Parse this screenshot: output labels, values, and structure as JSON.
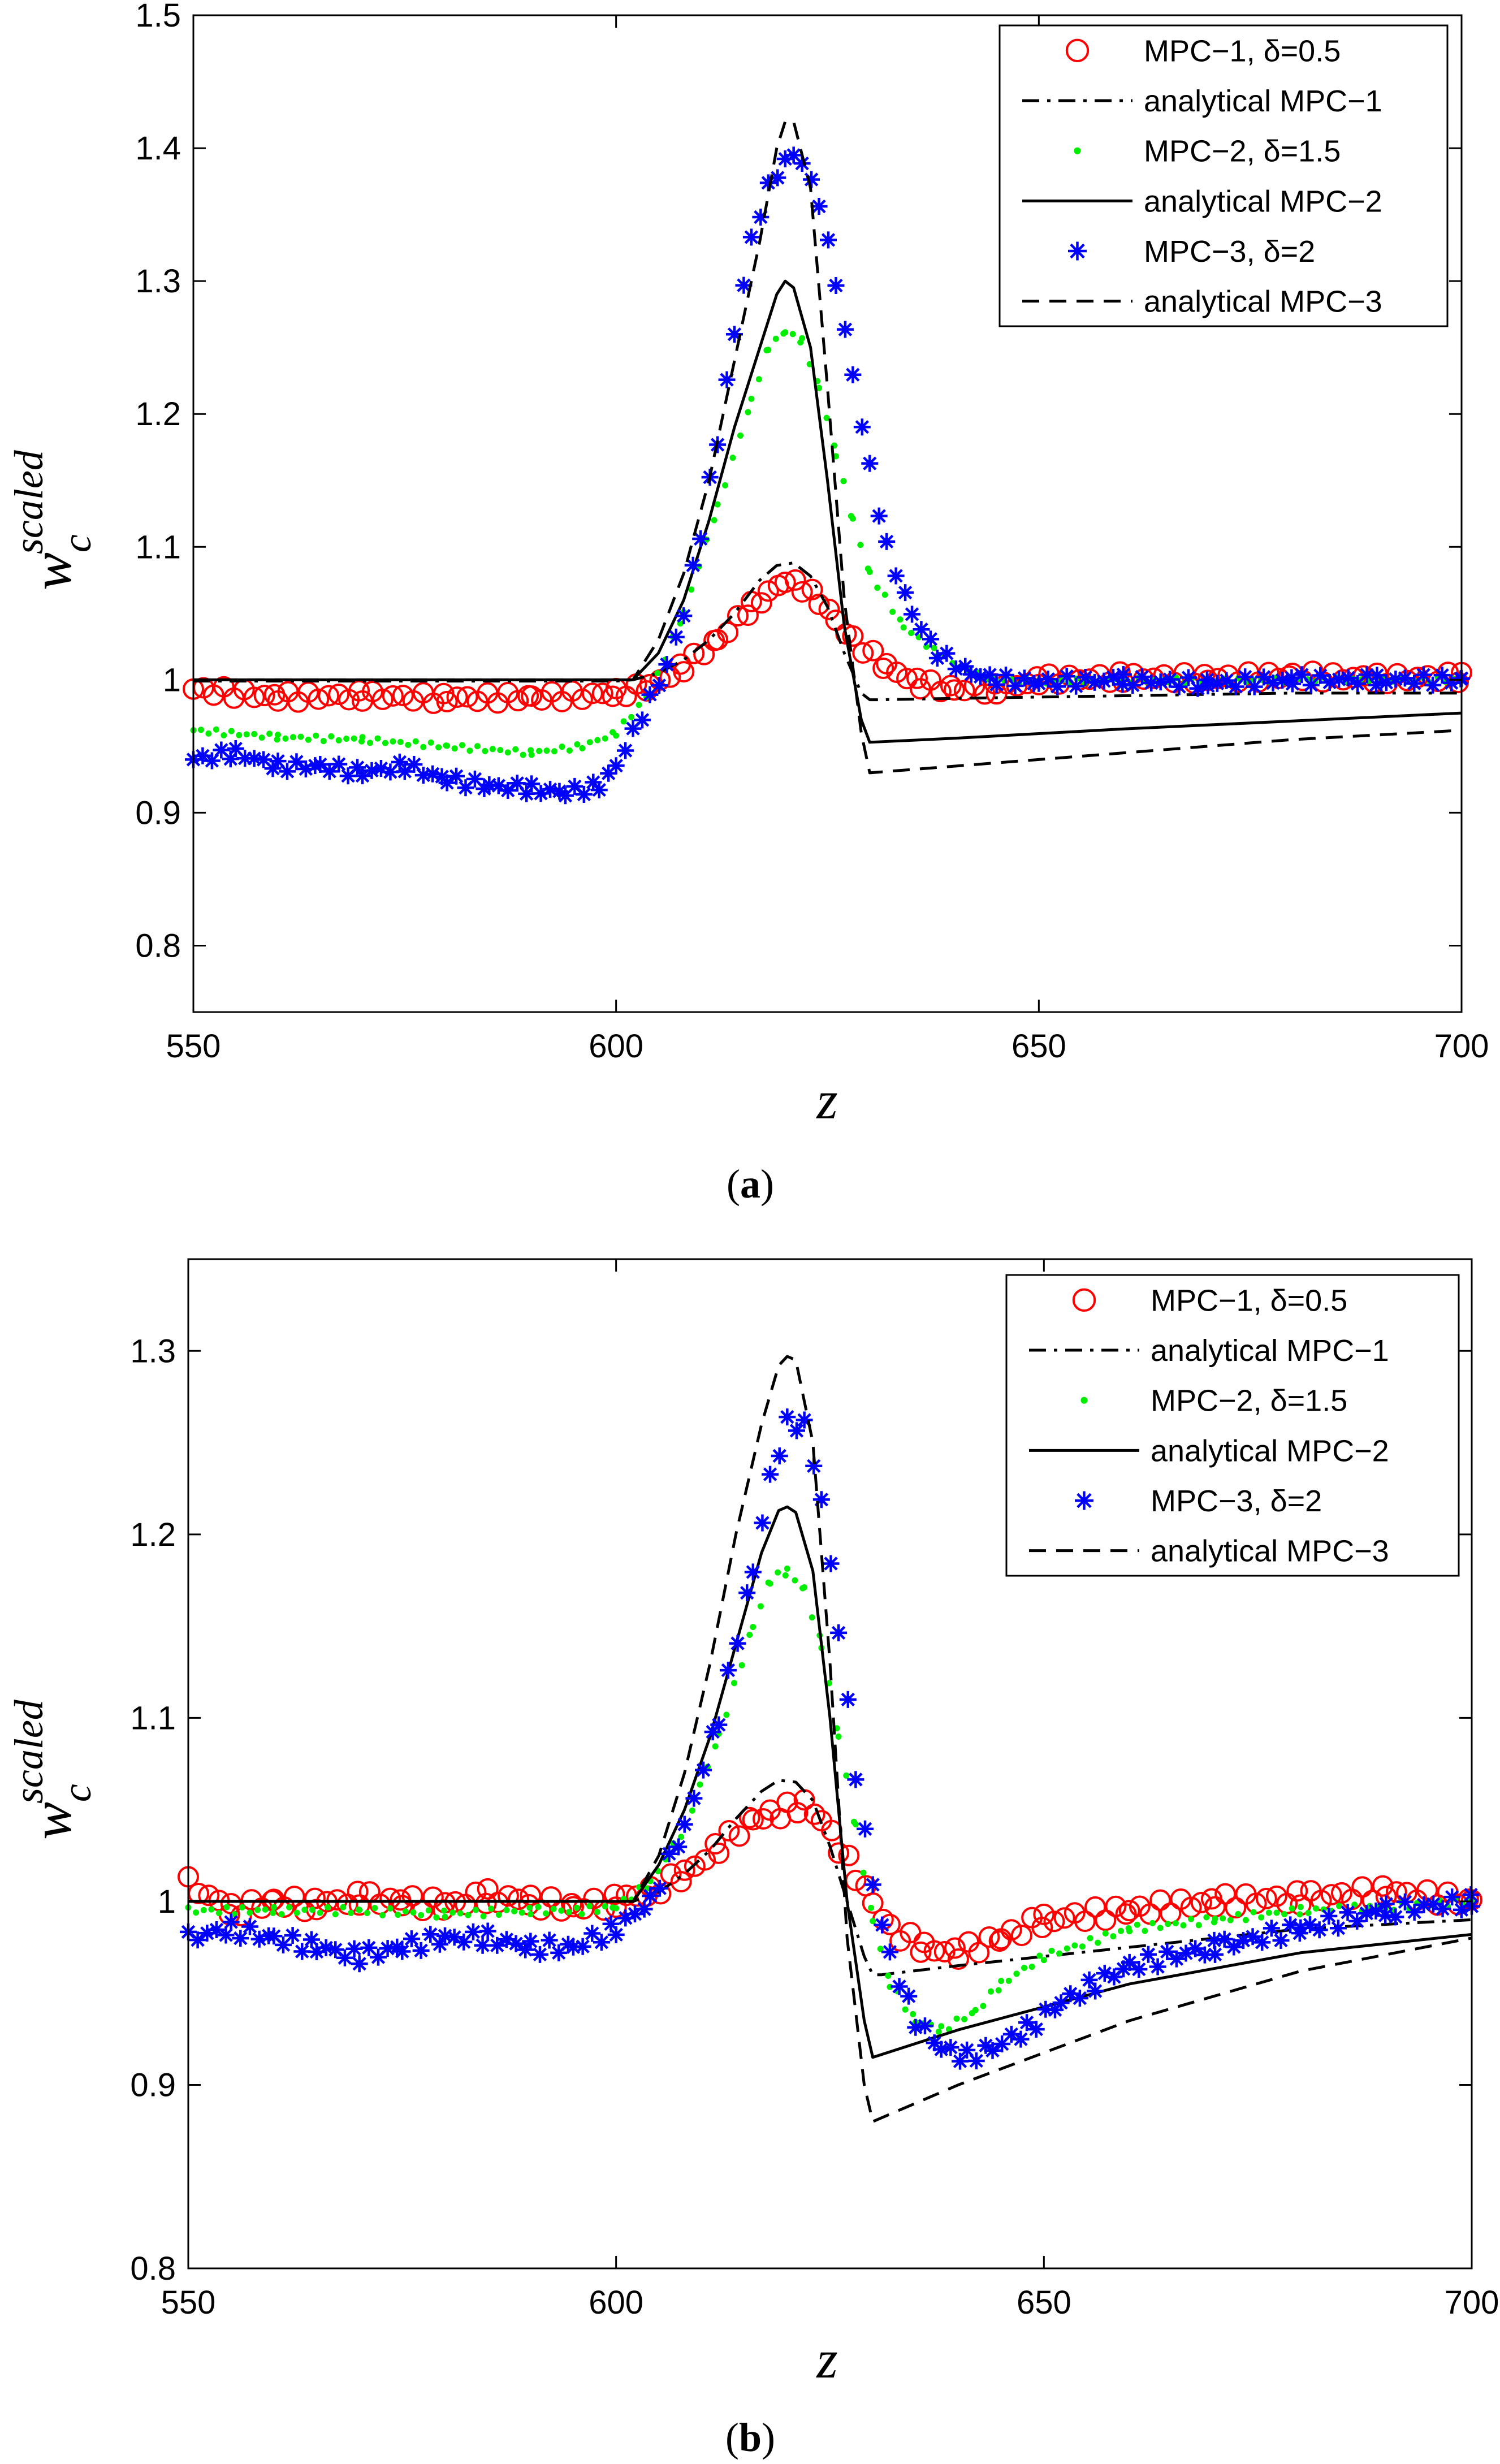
{
  "chart_data": [
    {
      "type": "scatter",
      "caption": "(a)",
      "xlabel": "z",
      "ylabel": "w",
      "ylabel_sub": "c",
      "ylabel_sup": "scaled",
      "xlim": [
        550,
        700
      ],
      "ylim": [
        0.75,
        1.5
      ],
      "xticks": [
        550,
        600,
        650,
        700
      ],
      "yticks": [
        0.8,
        0.9,
        1,
        1.1,
        1.2,
        1.3,
        1.4,
        1.5
      ],
      "ytick_labels": [
        "0.8",
        "0.9",
        "1",
        "1.1",
        "1.2",
        "1.3",
        "1.4",
        "1.5"
      ],
      "grid": false,
      "legend_position": "top-right",
      "series": [
        {
          "name": "MPC−1, δ=0.5",
          "marker": "circle",
          "color": "#ff0000",
          "x": [
            550,
            560,
            570,
            580,
            590,
            596,
            600,
            604,
            608,
            612,
            616,
            618,
            620,
            622,
            624,
            626,
            628,
            632,
            636,
            640,
            645,
            650,
            660,
            670,
            680,
            690,
            700
          ],
          "y": [
            0.993,
            0.987,
            0.988,
            0.986,
            0.987,
            0.988,
            0.99,
            0.995,
            1.01,
            1.03,
            1.055,
            1.065,
            1.075,
            1.07,
            1.06,
            1.045,
            1.03,
            1.01,
            0.997,
            0.993,
            0.993,
            1.0,
            1.002,
            1.001,
            1.003,
            1.001,
            1.002
          ]
        },
        {
          "name": "analytical MPC−1",
          "line": "dashdot",
          "color": "#000000",
          "x": [
            550,
            600,
            602,
            605,
            608,
            611,
            614,
            617,
            619,
            621,
            623,
            625,
            627,
            629,
            630,
            631,
            640,
            660,
            680,
            700
          ],
          "y": [
            0.999,
            0.999,
            1.0,
            1.005,
            1.015,
            1.03,
            1.05,
            1.075,
            1.086,
            1.088,
            1.078,
            1.055,
            1.02,
            0.99,
            0.985,
            0.985,
            0.986,
            0.988,
            0.99,
            0.99
          ]
        },
        {
          "name": "MPC−2, δ=1.5",
          "marker": "dot",
          "color": "#00ee00",
          "x": [
            550,
            560,
            570,
            580,
            590,
            596,
            600,
            604,
            608,
            612,
            616,
            618,
            620,
            622,
            624,
            626,
            628,
            630,
            634,
            638,
            642,
            645,
            650,
            660,
            670,
            680,
            690,
            700
          ],
          "y": [
            0.962,
            0.957,
            0.955,
            0.95,
            0.945,
            0.95,
            0.96,
            0.99,
            1.05,
            1.13,
            1.21,
            1.25,
            1.262,
            1.255,
            1.22,
            1.17,
            1.12,
            1.08,
            1.04,
            1.02,
            1.005,
            1.0,
            0.998,
            1.0,
            0.999,
            1.0,
            1.0,
            1.0
          ]
        },
        {
          "name": "analytical MPC−2",
          "line": "solid",
          "color": "#000000",
          "x": [
            550,
            600,
            602,
            605,
            608,
            611,
            614,
            617,
            619,
            620,
            621,
            623,
            625,
            627,
            629,
            630,
            640,
            660,
            680,
            700
          ],
          "y": [
            1.0,
            1.0,
            1.0,
            1.02,
            1.06,
            1.12,
            1.19,
            1.25,
            1.29,
            1.3,
            1.295,
            1.25,
            1.15,
            1.04,
            0.97,
            0.953,
            0.956,
            0.963,
            0.969,
            0.975
          ]
        },
        {
          "name": "MPC−3, δ=2",
          "marker": "asterisk",
          "color": "#0000ff",
          "x": [
            550,
            555,
            560,
            565,
            570,
            575,
            580,
            585,
            590,
            594,
            598,
            600,
            602,
            604,
            606,
            608,
            610,
            612,
            614,
            616,
            618,
            620,
            621,
            622,
            624,
            626,
            628,
            630,
            632,
            635,
            638,
            642,
            645,
            650,
            660,
            670,
            680,
            690,
            700
          ],
          "y": [
            0.94,
            0.945,
            0.935,
            0.935,
            0.93,
            0.935,
            0.925,
            0.92,
            0.918,
            0.915,
            0.92,
            0.935,
            0.96,
            0.985,
            1.01,
            1.05,
            1.11,
            1.18,
            1.26,
            1.33,
            1.37,
            1.39,
            1.395,
            1.39,
            1.36,
            1.3,
            1.23,
            1.16,
            1.1,
            1.05,
            1.02,
            1.005,
            1.0,
            0.998,
            1.0,
            0.997,
            1.0,
            1.0,
            1.0
          ]
        },
        {
          "name": "analytical MPC−3",
          "line": "dashed",
          "color": "#000000",
          "x": [
            550,
            600,
            602,
            605,
            608,
            611,
            614,
            617,
            619,
            620,
            621,
            623,
            625,
            627,
            629,
            630,
            640,
            660,
            680,
            700
          ],
          "y": [
            1.0,
            1.0,
            1.0,
            1.03,
            1.08,
            1.15,
            1.24,
            1.33,
            1.4,
            1.42,
            1.42,
            1.37,
            1.22,
            1.06,
            0.96,
            0.93,
            0.935,
            0.945,
            0.955,
            0.962
          ]
        }
      ]
    },
    {
      "type": "scatter",
      "caption": "(b)",
      "xlabel": "z",
      "ylabel": "w",
      "ylabel_sub": "c",
      "ylabel_sup": "scaled",
      "xlim": [
        550,
        700
      ],
      "ylim": [
        0.8,
        1.35
      ],
      "xticks": [
        550,
        600,
        650,
        700
      ],
      "yticks": [
        0.8,
        0.9,
        1,
        1.1,
        1.2,
        1.3
      ],
      "ytick_labels": [
        "0.8",
        "0.9",
        "1",
        "1.1",
        "1.2",
        "1.3"
      ],
      "grid": false,
      "legend_position": "top-right",
      "series": [
        {
          "name": "MPC−1, δ=0.5",
          "marker": "circle",
          "color": "#ff0000",
          "x": [
            550,
            555,
            560,
            565,
            570,
            575,
            580,
            585,
            590,
            595,
            600,
            604,
            608,
            612,
            616,
            618,
            620,
            622,
            624,
            626,
            628,
            630,
            632,
            636,
            640,
            645,
            650,
            660,
            670,
            680,
            690,
            700
          ],
          "y": [
            1.01,
            0.995,
            1.0,
            0.998,
            1.002,
            1.0,
            0.998,
            1.003,
            1.0,
            0.997,
            1.0,
            1.005,
            1.015,
            1.03,
            1.045,
            1.047,
            1.05,
            1.053,
            1.045,
            1.03,
            1.015,
            1.0,
            0.985,
            0.975,
            0.972,
            0.98,
            0.99,
            0.995,
            1.0,
            1.002,
            1.005,
            1.0
          ]
        },
        {
          "name": "analytical MPC−1",
          "line": "dashdot",
          "color": "#000000",
          "x": [
            550,
            600,
            602,
            605,
            608,
            611,
            614,
            617,
            619,
            621,
            623,
            625,
            627,
            629,
            630,
            631,
            640,
            660,
            680,
            700
          ],
          "y": [
            1.0,
            1.0,
            1.0,
            1.005,
            1.015,
            1.028,
            1.045,
            1.06,
            1.066,
            1.065,
            1.055,
            1.03,
            1.0,
            0.97,
            0.96,
            0.96,
            0.965,
            0.975,
            0.985,
            0.99
          ]
        },
        {
          "name": "MPC−2, δ=1.5",
          "marker": "dot",
          "color": "#00ee00",
          "x": [
            550,
            560,
            570,
            580,
            590,
            596,
            600,
            604,
            608,
            612,
            616,
            618,
            620,
            622,
            624,
            626,
            628,
            630,
            632,
            635,
            638,
            642,
            645,
            650,
            660,
            670,
            680,
            690,
            700
          ],
          "y": [
            0.995,
            0.995,
            0.995,
            0.993,
            0.995,
            0.995,
            0.997,
            1.01,
            1.04,
            1.09,
            1.15,
            1.175,
            1.18,
            1.17,
            1.14,
            1.09,
            1.04,
            0.99,
            0.955,
            0.935,
            0.93,
            0.94,
            0.955,
            0.97,
            0.985,
            0.99,
            0.995,
            0.997,
            1.0
          ]
        },
        {
          "name": "analytical MPC−2",
          "line": "solid",
          "color": "#000000",
          "x": [
            550,
            600,
            602,
            605,
            608,
            611,
            614,
            617,
            619,
            620,
            621,
            623,
            625,
            627,
            629,
            630,
            640,
            660,
            680,
            700
          ],
          "y": [
            1.0,
            1.0,
            1.0,
            1.02,
            1.05,
            1.09,
            1.14,
            1.19,
            1.213,
            1.215,
            1.212,
            1.18,
            1.1,
            1.0,
            0.935,
            0.915,
            0.93,
            0.955,
            0.972,
            0.982
          ]
        },
        {
          "name": "MPC−3, δ=2",
          "marker": "asterisk",
          "color": "#0000ff",
          "x": [
            550,
            555,
            560,
            565,
            570,
            575,
            580,
            585,
            590,
            595,
            600,
            604,
            608,
            612,
            616,
            618,
            620,
            622,
            624,
            626,
            628,
            630,
            632,
            635,
            638,
            641,
            644,
            648,
            652,
            656,
            660,
            670,
            680,
            690,
            700
          ],
          "y": [
            0.98,
            0.985,
            0.98,
            0.975,
            0.97,
            0.975,
            0.98,
            0.98,
            0.975,
            0.975,
            0.985,
            1.0,
            1.04,
            1.1,
            1.18,
            1.23,
            1.26,
            1.26,
            1.22,
            1.15,
            1.07,
            1.01,
            0.97,
            0.935,
            0.92,
            0.915,
            0.92,
            0.93,
            0.945,
            0.955,
            0.965,
            0.975,
            0.985,
            0.995,
            1.0
          ]
        },
        {
          "name": "analytical MPC−3",
          "line": "dashed",
          "color": "#000000",
          "x": [
            550,
            600,
            602,
            605,
            608,
            611,
            614,
            617,
            619,
            620,
            621,
            623,
            625,
            627,
            629,
            630,
            640,
            660,
            680,
            700
          ],
          "y": [
            1.0,
            1.0,
            1.0,
            1.025,
            1.07,
            1.13,
            1.2,
            1.26,
            1.292,
            1.297,
            1.295,
            1.25,
            1.13,
            0.98,
            0.9,
            0.88,
            0.9,
            0.935,
            0.962,
            0.98
          ]
        }
      ]
    }
  ]
}
